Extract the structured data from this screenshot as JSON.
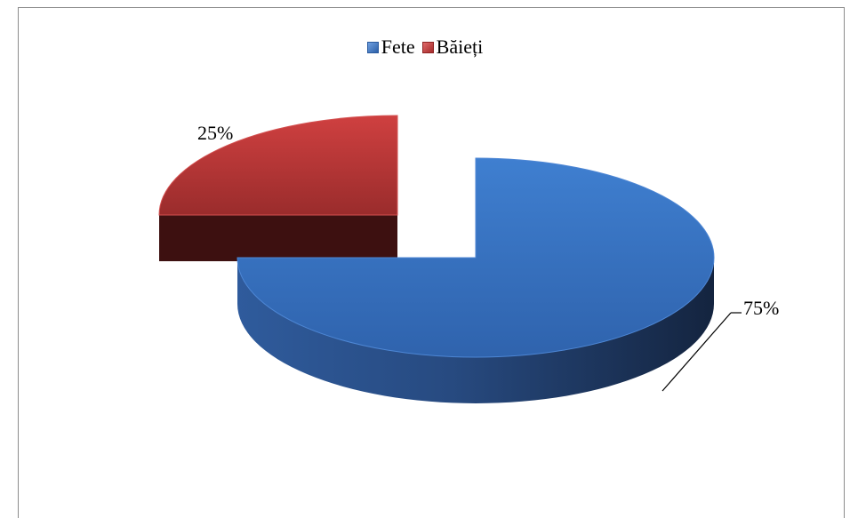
{
  "chart_data": {
    "type": "pie",
    "title": "",
    "legend_position": "top",
    "categories": [
      "Fete",
      "Băieți"
    ],
    "values": [
      75,
      25
    ],
    "labels": [
      "75%",
      "25%"
    ],
    "colors": [
      "#3a73c4",
      "#c0393a"
    ],
    "style": "3d-exploded"
  }
}
